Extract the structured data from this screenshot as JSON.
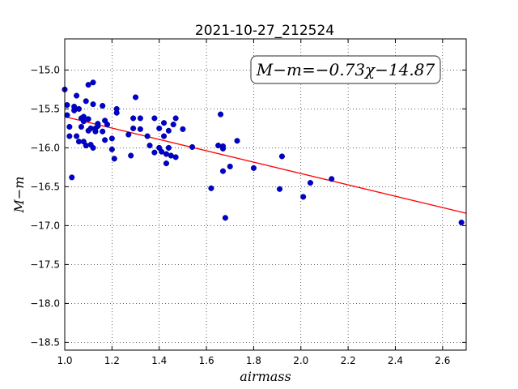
{
  "chart_data": {
    "type": "scatter",
    "title": "2021-10-27_212524",
    "xlabel": "airmass",
    "ylabel": "M−m",
    "xlim": [
      1.0,
      2.7
    ],
    "ylim": [
      -18.6,
      -14.6
    ],
    "y_inverted": true,
    "grid": true,
    "grid_style": "dotted",
    "x_ticks": [
      1.0,
      1.2,
      1.4,
      1.6,
      1.8,
      2.0,
      2.2,
      2.4,
      2.6
    ],
    "x_tick_labels": [
      "1.0",
      "1.2",
      "1.4",
      "1.6",
      "1.8",
      "2.0",
      "2.2",
      "2.4",
      "2.6"
    ],
    "y_ticks": [
      -15.0,
      -15.5,
      -16.0,
      -16.5,
      -17.0,
      -17.5,
      -18.0,
      -18.5
    ],
    "y_tick_labels": [
      "−15.0",
      "−15.5",
      "−16.0",
      "−16.5",
      "−17.0",
      "−17.5",
      "−18.0",
      "−18.5"
    ],
    "annotation": "M−m=−0.73χ−14.87",
    "fit": {
      "slope": -0.73,
      "intercept": -14.87,
      "color": "#ff0000"
    },
    "point_color": "#0000cc",
    "points": [
      [
        1.0,
        -15.25
      ],
      [
        1.01,
        -15.45
      ],
      [
        1.01,
        -15.58
      ],
      [
        1.02,
        -15.73
      ],
      [
        1.02,
        -15.85
      ],
      [
        1.03,
        -16.38
      ],
      [
        1.04,
        -15.52
      ],
      [
        1.04,
        -15.47
      ],
      [
        1.05,
        -15.33
      ],
      [
        1.05,
        -15.85
      ],
      [
        1.06,
        -15.5
      ],
      [
        1.06,
        -15.92
      ],
      [
        1.07,
        -15.62
      ],
      [
        1.07,
        -15.73
      ],
      [
        1.08,
        -15.6
      ],
      [
        1.08,
        -15.66
      ],
      [
        1.08,
        -15.92
      ],
      [
        1.09,
        -15.4
      ],
      [
        1.09,
        -15.97
      ],
      [
        1.1,
        -15.19
      ],
      [
        1.1,
        -15.63
      ],
      [
        1.1,
        -15.78
      ],
      [
        1.11,
        -15.75
      ],
      [
        1.11,
        -15.96
      ],
      [
        1.12,
        -15.16
      ],
      [
        1.12,
        -15.44
      ],
      [
        1.12,
        -16.0
      ],
      [
        1.13,
        -15.75
      ],
      [
        1.13,
        -15.79
      ],
      [
        1.14,
        -15.69
      ],
      [
        1.14,
        -15.72
      ],
      [
        1.16,
        -15.46
      ],
      [
        1.16,
        -15.79
      ],
      [
        1.17,
        -15.65
      ],
      [
        1.17,
        -15.9
      ],
      [
        1.18,
        -15.7
      ],
      [
        1.2,
        -15.88
      ],
      [
        1.2,
        -16.02
      ],
      [
        1.21,
        -16.14
      ],
      [
        1.22,
        -15.5
      ],
      [
        1.22,
        -15.55
      ],
      [
        1.27,
        -15.83
      ],
      [
        1.28,
        -16.1
      ],
      [
        1.29,
        -15.62
      ],
      [
        1.29,
        -15.75
      ],
      [
        1.3,
        -15.35
      ],
      [
        1.32,
        -15.62
      ],
      [
        1.32,
        -15.76
      ],
      [
        1.35,
        -15.85
      ],
      [
        1.36,
        -15.97
      ],
      [
        1.38,
        -15.62
      ],
      [
        1.38,
        -16.06
      ],
      [
        1.4,
        -15.75
      ],
      [
        1.4,
        -16.0
      ],
      [
        1.41,
        -16.05
      ],
      [
        1.42,
        -15.68
      ],
      [
        1.42,
        -15.85
      ],
      [
        1.43,
        -16.08
      ],
      [
        1.43,
        -16.2
      ],
      [
        1.44,
        -15.78
      ],
      [
        1.44,
        -16.0
      ],
      [
        1.45,
        -16.1
      ],
      [
        1.46,
        -15.7
      ],
      [
        1.47,
        -15.62
      ],
      [
        1.47,
        -16.12
      ],
      [
        1.5,
        -15.76
      ],
      [
        1.54,
        -15.99
      ],
      [
        1.62,
        -16.52
      ],
      [
        1.65,
        -15.97
      ],
      [
        1.66,
        -15.57
      ],
      [
        1.67,
        -15.98
      ],
      [
        1.67,
        -16.01
      ],
      [
        1.67,
        -16.3
      ],
      [
        1.68,
        -16.9
      ],
      [
        1.7,
        -16.24
      ],
      [
        1.73,
        -15.91
      ],
      [
        1.8,
        -16.26
      ],
      [
        1.91,
        -16.53
      ],
      [
        1.92,
        -16.11
      ],
      [
        2.01,
        -16.63
      ],
      [
        2.04,
        -16.45
      ],
      [
        2.13,
        -16.4
      ],
      [
        2.68,
        -16.96
      ]
    ]
  }
}
